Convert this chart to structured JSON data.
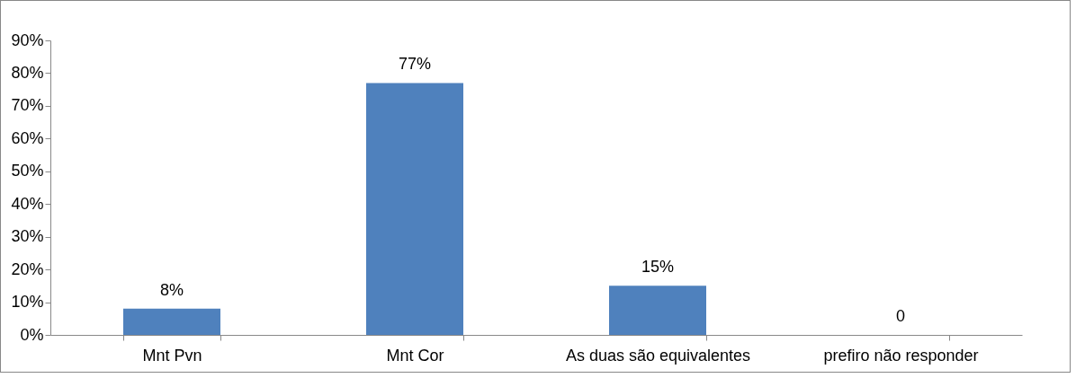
{
  "chart_data": {
    "type": "bar",
    "categories": [
      "Mnt Pvn",
      "Mnt Cor",
      "As duas são equivalentes",
      "prefiro não responder"
    ],
    "values": [
      8,
      77,
      15,
      0
    ],
    "value_labels": [
      "8%",
      "77%",
      "15%",
      "0"
    ],
    "color": "#4f81bd",
    "ylim": [
      0,
      90
    ],
    "yticks": [
      {
        "value": 0,
        "label": "0%"
      },
      {
        "value": 10,
        "label": "10%"
      },
      {
        "value": 20,
        "label": "20%"
      },
      {
        "value": 30,
        "label": "30%"
      },
      {
        "value": 40,
        "label": "40%"
      },
      {
        "value": 50,
        "label": "50%"
      },
      {
        "value": 60,
        "label": "60%"
      },
      {
        "value": 70,
        "label": "70%"
      },
      {
        "value": 80,
        "label": "80%"
      },
      {
        "value": 90,
        "label": "90%"
      }
    ],
    "grid": false
  }
}
